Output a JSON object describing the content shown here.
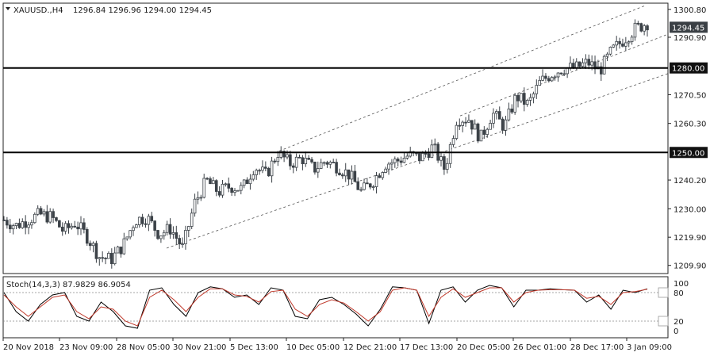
{
  "chart_data": [
    {
      "type": "candlestick",
      "symbol_header": "XAUUSD.,H4",
      "ohlc_header": "1296.84 1296.96 1294.00 1294.45",
      "y_ticks": [
        "1300.80",
        "1290.90",
        "1270.50",
        "1260.30",
        "1240.20",
        "1230.00",
        "1219.90",
        "1209.90"
      ],
      "ylim": [
        1207,
        1303
      ],
      "x_ticks": [
        "20 Nov 2018",
        "23 Nov 09:00",
        "28 Nov 05:00",
        "30 Nov 21:00",
        "5 Dec 13:00",
        "10 Dec 05:00",
        "12 Dec 21:00",
        "17 Dec 13:00",
        "20 Dec 05:00",
        "26 Dec 01:00",
        "28 Dec 17:00",
        "3 Jan 09:00"
      ],
      "current_price": "1294.45",
      "levels": [
        {
          "label": "1280.00",
          "value": 1280.0
        },
        {
          "label": "1250.00",
          "value": 1250.0
        }
      ],
      "price_path": [
        1226,
        1224,
        1226,
        1228,
        1227,
        1222,
        1225,
        1220,
        1213,
        1212,
        1217,
        1226,
        1227,
        1221,
        1223,
        1216,
        1232,
        1240,
        1236,
        1238,
        1237,
        1245,
        1242,
        1250,
        1246,
        1248,
        1244,
        1247,
        1245,
        1242,
        1236,
        1240,
        1246,
        1247,
        1249,
        1248,
        1252,
        1244,
        1262,
        1262,
        1255,
        1264,
        1259,
        1270,
        1267,
        1275,
        1278,
        1280,
        1280,
        1282,
        1279,
        1286,
        1290,
        1294,
        1296
      ],
      "channel": {
        "upper": [
          [
            1252,
            1302
          ]
        ],
        "lower": [
          [
            1226,
            1278
          ]
        ]
      }
    },
    {
      "type": "line",
      "indicator_header": "Stoch(14,3,3) 87.9829 86.9054",
      "levels": [
        "100",
        "80",
        "20",
        "0"
      ],
      "ylim": [
        0,
        100
      ],
      "series": [
        {
          "name": "%K",
          "color": "#000000",
          "values": [
            80,
            40,
            20,
            55,
            75,
            80,
            30,
            20,
            60,
            40,
            10,
            5,
            85,
            90,
            55,
            30,
            80,
            92,
            88,
            70,
            75,
            55,
            90,
            85,
            30,
            25,
            65,
            70,
            55,
            35,
            10,
            45,
            92,
            90,
            85,
            15,
            85,
            92,
            60,
            85,
            95,
            90,
            50,
            85,
            85,
            88,
            86,
            85,
            60,
            75,
            45,
            85,
            80,
            88
          ]
        },
        {
          "name": "%D",
          "color": "#c0392b",
          "values": [
            75,
            50,
            30,
            50,
            70,
            75,
            40,
            25,
            50,
            45,
            20,
            10,
            70,
            85,
            65,
            40,
            70,
            88,
            88,
            75,
            72,
            60,
            82,
            85,
            45,
            30,
            55,
            65,
            58,
            40,
            20,
            40,
            85,
            90,
            85,
            30,
            70,
            88,
            70,
            80,
            90,
            90,
            60,
            80,
            85,
            86,
            86,
            85,
            68,
            72,
            55,
            80,
            82,
            87
          ]
        }
      ]
    }
  ]
}
